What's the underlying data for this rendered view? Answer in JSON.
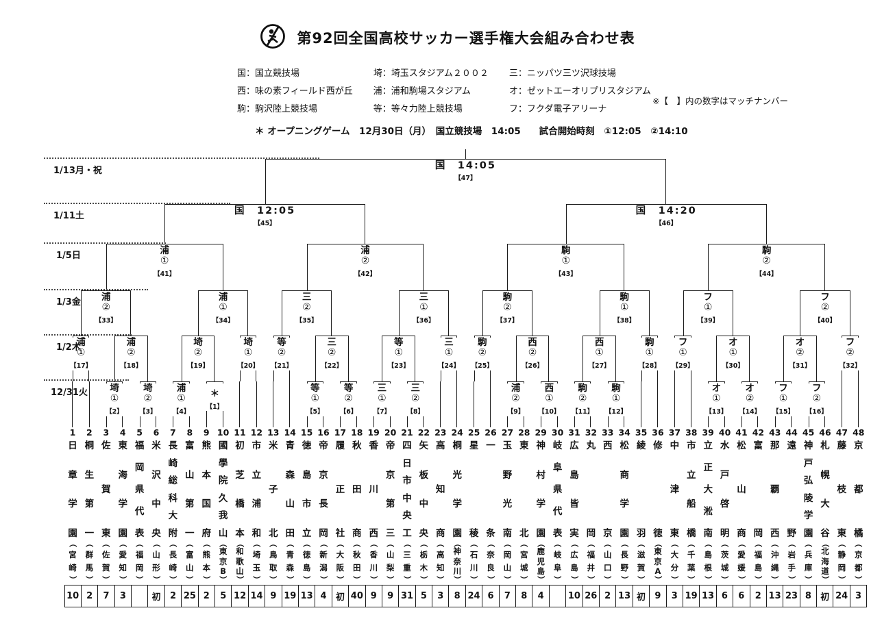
{
  "header": {
    "title": "第92回全国高校サッカー選手権大会組み合わせ表"
  },
  "legend": {
    "items": [
      "国：国立競技場",
      "西：味の素フィールド西が丘",
      "駒：駒沢陸上競技場",
      "埼：埼玉スタジアム２００２",
      "浦：浦和駒場スタジアム",
      "等：等々力陸上競技場",
      "三：ニッパツ三ツ沢球技場",
      "オ：ゼットエーオリプリスタジアム",
      "フ：フクダ電子アリーナ"
    ],
    "note": "※【　】内の数字はマッチナンバー"
  },
  "opening_line": "＊ オープニングゲーム　12月30日（月）　国立競技場　14:05　　試合開始時刻　①12:05　②14:10",
  "round_dates": [
    "1/13月・祝",
    "1/11土",
    "1/5日",
    "1/3金",
    "1/2木",
    "12/31火"
  ],
  "teams": [
    {
      "no": 1,
      "name": "日章学園",
      "pref": "宮崎",
      "count": "10"
    },
    {
      "no": 2,
      "name": "桐生第一",
      "pref": "群馬",
      "count": "2"
    },
    {
      "no": 3,
      "name": "佐賀東",
      "pref": "佐賀",
      "count": "7"
    },
    {
      "no": 4,
      "name": "東海学園",
      "pref": "愛知",
      "count": "3"
    },
    {
      "no": 5,
      "name": "福岡県代表",
      "pref": "福岡",
      "count": ""
    },
    {
      "no": 6,
      "name": "米沢中央",
      "pref": "山形",
      "count": "初"
    },
    {
      "no": 7,
      "name": "長崎総科大附",
      "pref": "長崎",
      "count": "2"
    },
    {
      "no": 8,
      "name": "富山第一",
      "pref": "富山",
      "count": "25"
    },
    {
      "no": 9,
      "name": "熊本国府",
      "pref": "熊本",
      "count": "2"
    },
    {
      "no": 10,
      "name": "國學院久我山",
      "pref": "東京B",
      "count": "5"
    },
    {
      "no": 11,
      "name": "初芝橋本",
      "pref": "和歌山",
      "count": "12"
    },
    {
      "no": 12,
      "name": "市立浦和",
      "pref": "埼玉",
      "count": "14"
    },
    {
      "no": 13,
      "name": "米子北",
      "pref": "鳥取",
      "count": "9"
    },
    {
      "no": 14,
      "name": "青森山田",
      "pref": "青森",
      "count": "19"
    },
    {
      "no": 15,
      "name": "徳島市立",
      "pref": "徳島",
      "count": "13"
    },
    {
      "no": 16,
      "name": "帝京長岡",
      "pref": "新潟",
      "count": "4"
    },
    {
      "no": 17,
      "name": "履正社",
      "pref": "大阪",
      "count": "初"
    },
    {
      "no": 18,
      "name": "秋田商",
      "pref": "秋田",
      "count": "40"
    },
    {
      "no": 19,
      "name": "香川西",
      "pref": "香川",
      "count": "9"
    },
    {
      "no": 20,
      "name": "帝京第三",
      "pref": "山梨",
      "count": "9"
    },
    {
      "no": 21,
      "name": "四日市中央工",
      "pref": "三重",
      "count": "31"
    },
    {
      "no": 22,
      "name": "矢板中央",
      "pref": "栃木",
      "count": "5"
    },
    {
      "no": 23,
      "name": "高知商",
      "pref": "高知",
      "count": "3"
    },
    {
      "no": 24,
      "name": "桐光学園",
      "pref": "神奈川",
      "count": "8"
    },
    {
      "no": 25,
      "name": "星稜",
      "pref": "石川",
      "count": "24"
    },
    {
      "no": 26,
      "name": "一条",
      "pref": "奈良",
      "count": "6"
    },
    {
      "no": 27,
      "name": "玉野光南",
      "pref": "岡山",
      "count": "7"
    },
    {
      "no": 28,
      "name": "東北",
      "pref": "宮城",
      "count": "8"
    },
    {
      "no": 29,
      "name": "神村学園",
      "pref": "鹿児島",
      "count": "4"
    },
    {
      "no": 30,
      "name": "岐阜県代表",
      "pref": "岐阜",
      "count": ""
    },
    {
      "no": 31,
      "name": "広島皆実",
      "pref": "広島",
      "count": "10"
    },
    {
      "no": 32,
      "name": "丸岡",
      "pref": "福井",
      "count": "26"
    },
    {
      "no": 33,
      "name": "西京",
      "pref": "山口",
      "count": "2"
    },
    {
      "no": 34,
      "name": "松商学園",
      "pref": "長野",
      "count": "13"
    },
    {
      "no": 35,
      "name": "綾羽",
      "pref": "滋賀",
      "count": "初"
    },
    {
      "no": 36,
      "name": "修徳",
      "pref": "東京A",
      "count": "9"
    },
    {
      "no": 37,
      "name": "中津東",
      "pref": "大分",
      "count": "3"
    },
    {
      "no": 38,
      "name": "市立船橋",
      "pref": "千葉",
      "count": "19"
    },
    {
      "no": 39,
      "name": "立正大淞南",
      "pref": "島根",
      "count": "13"
    },
    {
      "no": 40,
      "name": "水戸啓明",
      "pref": "茨城",
      "count": "6"
    },
    {
      "no": 41,
      "name": "松山商",
      "pref": "愛媛",
      "count": "6"
    },
    {
      "no": 42,
      "name": "富岡",
      "pref": "福島",
      "count": "2"
    },
    {
      "no": 43,
      "name": "那覇西",
      "pref": "沖縄",
      "count": "13"
    },
    {
      "no": 44,
      "name": "遠野",
      "pref": "岩手",
      "count": "23"
    },
    {
      "no": 45,
      "name": "神戸弘陵学園",
      "pref": "兵庫",
      "count": "8"
    },
    {
      "no": 46,
      "name": "札幌大谷",
      "pref": "北海道",
      "count": "初"
    },
    {
      "no": 47,
      "name": "藤枝東",
      "pref": "静岡",
      "count": "24"
    },
    {
      "no": 48,
      "name": "京都橘",
      "pref": "京都",
      "count": "3"
    }
  ],
  "matches": [
    {
      "n": 1,
      "venue": "＊",
      "slot": "",
      "a": "t9",
      "b": "t10"
    },
    {
      "n": 2,
      "venue": "埼",
      "slot": "①",
      "a": "t3",
      "b": "t4"
    },
    {
      "n": 3,
      "venue": "埼",
      "slot": "②",
      "a": "t5",
      "b": "t6"
    },
    {
      "n": 4,
      "venue": "浦",
      "slot": "①",
      "a": "t7",
      "b": "t8"
    },
    {
      "n": 5,
      "venue": "等",
      "slot": "①",
      "a": "t15",
      "b": "t16"
    },
    {
      "n": 6,
      "venue": "等",
      "slot": "②",
      "a": "t17",
      "b": "t18"
    },
    {
      "n": 7,
      "venue": "三",
      "slot": "①",
      "a": "t19",
      "b": "t20"
    },
    {
      "n": 8,
      "venue": "三",
      "slot": "②",
      "a": "t21",
      "b": "t22"
    },
    {
      "n": 9,
      "venue": "浦",
      "slot": "②",
      "a": "t27",
      "b": "t28"
    },
    {
      "n": 10,
      "venue": "西",
      "slot": "①",
      "a": "t29",
      "b": "t30"
    },
    {
      "n": 11,
      "venue": "駒",
      "slot": "②",
      "a": "t31",
      "b": "t32"
    },
    {
      "n": 12,
      "venue": "駒",
      "slot": "①",
      "a": "t33",
      "b": "t34"
    },
    {
      "n": 13,
      "venue": "オ",
      "slot": "①",
      "a": "t39",
      "b": "t40"
    },
    {
      "n": 14,
      "venue": "オ",
      "slot": "②",
      "a": "t41",
      "b": "t42"
    },
    {
      "n": 15,
      "venue": "フ",
      "slot": "①",
      "a": "t43",
      "b": "t44"
    },
    {
      "n": 16,
      "venue": "フ",
      "slot": "②",
      "a": "t45",
      "b": "t46"
    },
    {
      "n": 17,
      "venue": "浦",
      "slot": "①",
      "a": "t1",
      "b": "t2"
    },
    {
      "n": 18,
      "venue": "浦",
      "slot": "②",
      "a": "m2",
      "b": "m3"
    },
    {
      "n": 19,
      "venue": "埼",
      "slot": "②",
      "a": "m4",
      "b": "m1"
    },
    {
      "n": 20,
      "venue": "埼",
      "slot": "①",
      "a": "t11",
      "b": "t12"
    },
    {
      "n": 21,
      "venue": "等",
      "slot": "②",
      "a": "t13",
      "b": "t14"
    },
    {
      "n": 22,
      "venue": "三",
      "slot": "②",
      "a": "m5",
      "b": "m6"
    },
    {
      "n": 23,
      "venue": "等",
      "slot": "①",
      "a": "m7",
      "b": "m8"
    },
    {
      "n": 24,
      "venue": "三",
      "slot": "①",
      "a": "t23",
      "b": "t24"
    },
    {
      "n": 25,
      "venue": "駒",
      "slot": "②",
      "a": "t25",
      "b": "t26"
    },
    {
      "n": 26,
      "venue": "西",
      "slot": "②",
      "a": "m9",
      "b": "m10"
    },
    {
      "n": 27,
      "venue": "西",
      "slot": "①",
      "a": "m11",
      "b": "m12"
    },
    {
      "n": 28,
      "venue": "駒",
      "slot": "①",
      "a": "t35",
      "b": "t36"
    },
    {
      "n": 29,
      "venue": "フ",
      "slot": "①",
      "a": "t37",
      "b": "t38"
    },
    {
      "n": 30,
      "venue": "オ",
      "slot": "①",
      "a": "m13",
      "b": "m14"
    },
    {
      "n": 31,
      "venue": "オ",
      "slot": "②",
      "a": "m15",
      "b": "m16"
    },
    {
      "n": 32,
      "venue": "フ",
      "slot": "②",
      "a": "t47",
      "b": "t48"
    },
    {
      "n": 33,
      "venue": "浦",
      "slot": "②",
      "a": "m17",
      "b": "m18"
    },
    {
      "n": 34,
      "venue": "浦",
      "slot": "①",
      "a": "m19",
      "b": "m20"
    },
    {
      "n": 35,
      "venue": "三",
      "slot": "②",
      "a": "m21",
      "b": "m22"
    },
    {
      "n": 36,
      "venue": "三",
      "slot": "①",
      "a": "m23",
      "b": "m24"
    },
    {
      "n": 37,
      "venue": "駒",
      "slot": "②",
      "a": "m25",
      "b": "m26"
    },
    {
      "n": 38,
      "venue": "駒",
      "slot": "①",
      "a": "m27",
      "b": "m28"
    },
    {
      "n": 39,
      "venue": "フ",
      "slot": "①",
      "a": "m29",
      "b": "m30"
    },
    {
      "n": 40,
      "venue": "フ",
      "slot": "②",
      "a": "m31",
      "b": "m32"
    },
    {
      "n": 41,
      "venue": "浦",
      "slot": "①",
      "a": "m33",
      "b": "m34"
    },
    {
      "n": 42,
      "venue": "浦",
      "slot": "②",
      "a": "m35",
      "b": "m36"
    },
    {
      "n": 43,
      "venue": "駒",
      "slot": "①",
      "a": "m37",
      "b": "m38"
    },
    {
      "n": 44,
      "venue": "駒",
      "slot": "②",
      "a": "m39",
      "b": "m40"
    },
    {
      "n": 45,
      "venue": "国",
      "slot": "12:05",
      "a": "m41",
      "b": "m42"
    },
    {
      "n": 46,
      "venue": "国",
      "slot": "14:20",
      "a": "m43",
      "b": "m44"
    },
    {
      "n": 47,
      "venue": "国",
      "slot": "14:05",
      "a": "m45",
      "b": "m46"
    }
  ]
}
